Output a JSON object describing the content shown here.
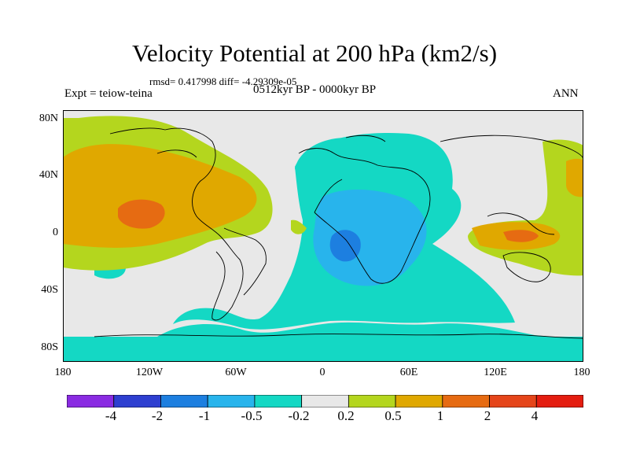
{
  "title": "Velocity Potential at 200 hPa (km2/s)",
  "stats": "rmsd= 0.417998 diff= -4.29309e-05",
  "expt": "Expt = teiow-teina",
  "period": "0512kyr BP - 0000kyr BP",
  "season": "ANN",
  "lat_labels": [
    "80N",
    "40N",
    "0",
    "40S",
    "80S"
  ],
  "lon_labels": [
    "180",
    "120W",
    "60W",
    "0",
    "60E",
    "120E",
    "180"
  ],
  "colorbar": {
    "labels": [
      "-4",
      "-2",
      "-1",
      "-0.5",
      "-0.2",
      "0.2",
      "0.5",
      "1",
      "2",
      "4"
    ],
    "colors": [
      "#8a2be2",
      "#2e3fd0",
      "#1d7fe0",
      "#28b4ec",
      "#14d8c4",
      "#e8e8e8",
      "#b4d61e",
      "#e0a800",
      "#e66b12",
      "#e41d10"
    ]
  },
  "colors": {
    "land_outline": "#000000",
    "background": "#e8e8e8"
  }
}
